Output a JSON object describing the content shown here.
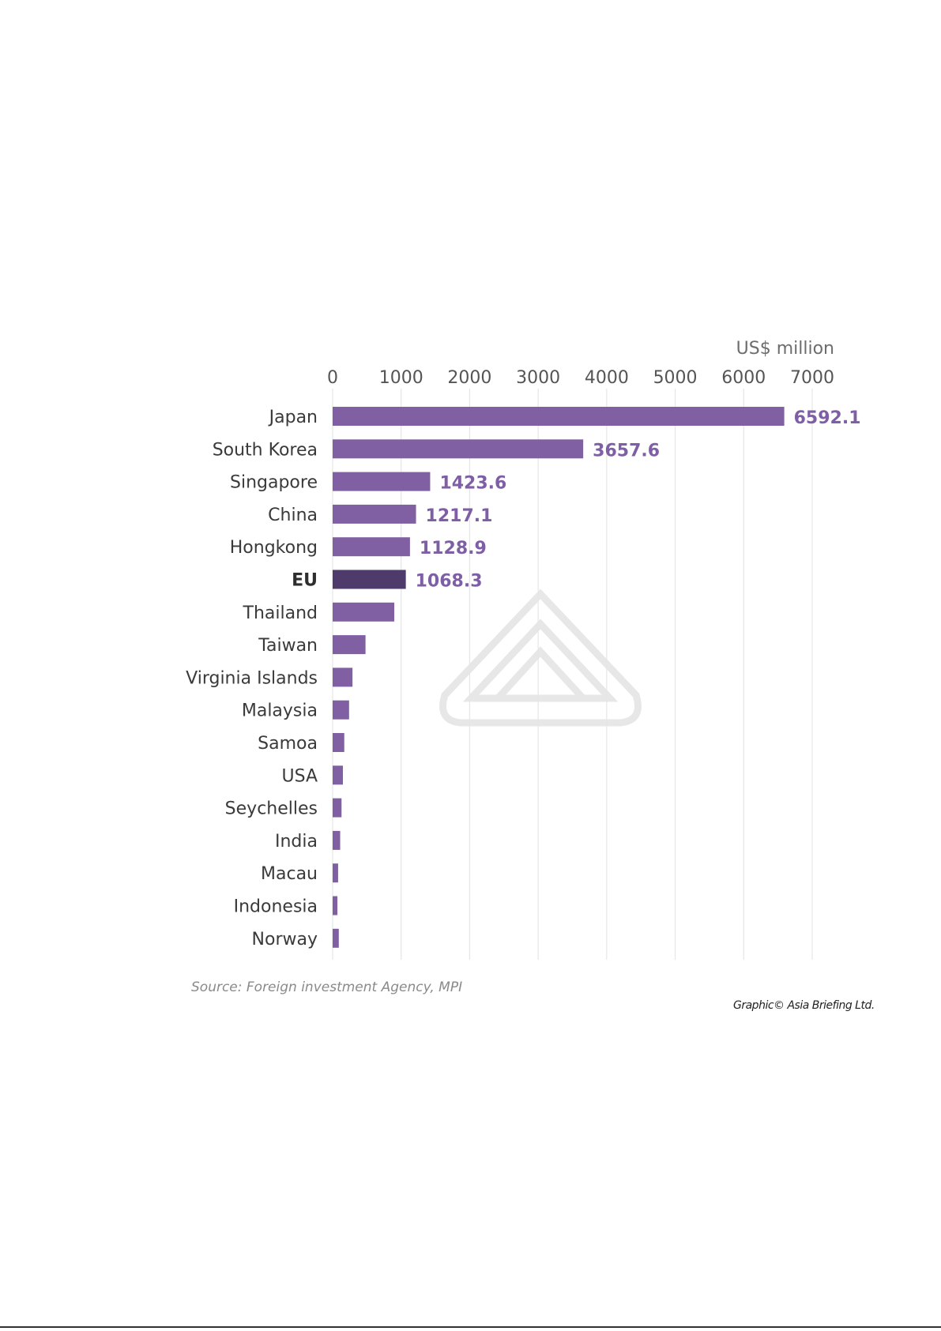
{
  "chart_data": {
    "type": "bar",
    "orientation": "horizontal",
    "unit_label": "US$ million",
    "xlim": [
      0,
      7000
    ],
    "ticks": [
      "0",
      "1000",
      "2000",
      "3000",
      "4000",
      "5000",
      "6000",
      "7000"
    ],
    "grid": true,
    "categories": [
      "Japan",
      "South Korea",
      "Singapore",
      "China",
      "Hongkong",
      "EU",
      "Thailand",
      "Taiwan",
      "Virginia Islands",
      "Malaysia",
      "Samoa",
      "USA",
      "Seychelles",
      "India",
      "Macau",
      "Indonesia",
      "Norway"
    ],
    "values": [
      6592.1,
      3657.6,
      1423.6,
      1217.1,
      1128.9,
      1068.3,
      900,
      480,
      290,
      240,
      170,
      150,
      130,
      110,
      80,
      70,
      90
    ],
    "data_labels": [
      "6592.1",
      "3657.6",
      "1423.6",
      "1217.1",
      "1128.9",
      "1068.3",
      "",
      "",
      "",
      "",
      "",
      "",
      "",
      "",
      "",
      "",
      ""
    ],
    "highlight": "EU",
    "colors": {
      "bar": "#8060a2",
      "highlight": "#4f3a6c",
      "label": "#7e5ea5"
    }
  },
  "source": "Source: Foreign investment Agency, MPI",
  "credit": "Graphic© Asia Briefing Ltd."
}
